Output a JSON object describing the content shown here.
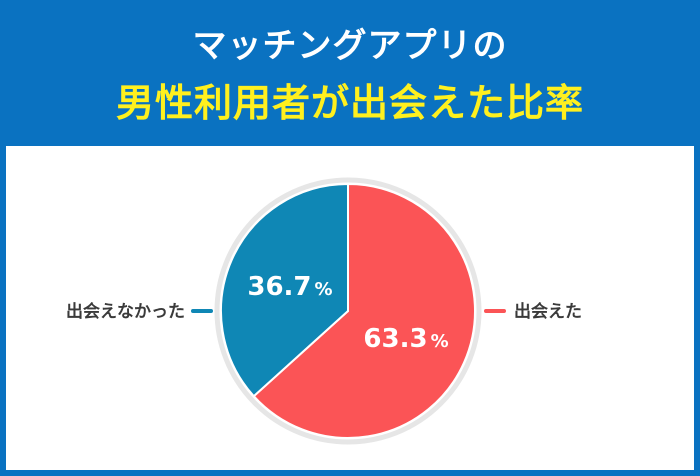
{
  "header": {
    "title_line1": "マッチングアプリの",
    "title_line2": "男性利用者が出会えた比率"
  },
  "colors": {
    "header_bg": "#0a72c1",
    "title_line1": "#ffffff",
    "title_line2": "#fff01e",
    "met": "#fb5456",
    "not_met": "#0f87b5"
  },
  "chart_data": {
    "type": "pie",
    "title": "マッチングアプリの 男性利用者が出会えた比率",
    "slices": [
      {
        "label": "出会えた",
        "value": 63.3,
        "value_text": "63.3",
        "unit": "%",
        "color": "#fb5456"
      },
      {
        "label": "出会えなかった",
        "value": 36.7,
        "value_text": "36.7",
        "unit": "%",
        "color": "#0f87b5"
      }
    ],
    "legend": "none",
    "start_angle": "12 o'clock",
    "direction": "clockwise"
  }
}
